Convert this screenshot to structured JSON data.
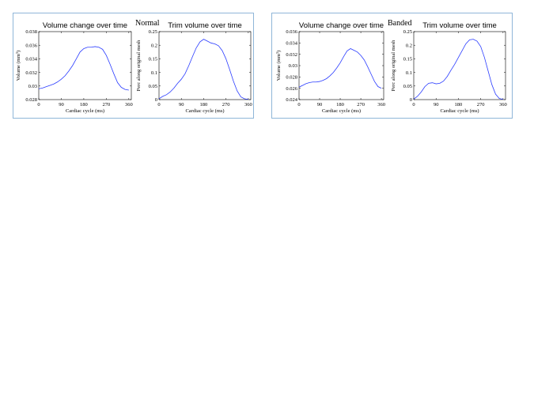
{
  "panels": [
    {
      "id": "normal",
      "label": "Normal"
    },
    {
      "id": "banded",
      "label": "Banded"
    }
  ],
  "style": {
    "line_color": "#2a3cff",
    "panel_border": "#8fb6d8"
  },
  "chart_data": [
    {
      "panel": "Normal",
      "type": "line",
      "title": "Volume change over time",
      "xlabel": "Cardiac cycle (ms)",
      "ylabel": "Volume (mm",
      "ylabel_sup": "3",
      "ylabel_end": ")",
      "xlim": [
        0,
        370
      ],
      "ylim": [
        0.028,
        0.038
      ],
      "xticks": [
        0,
        90,
        180,
        270,
        360
      ],
      "xtick_labels": [
        "0",
        "90",
        "180",
        "270",
        "360"
      ],
      "yticks": [
        0.028,
        0.03,
        0.032,
        0.034,
        0.036,
        0.038
      ],
      "ytick_labels": [
        "0.028",
        "0.03",
        "0.032",
        "0.034",
        "0.036",
        "0.038"
      ],
      "series": [
        {
          "x": [
            0,
            15,
            30,
            45,
            60,
            75,
            90,
            105,
            120,
            135,
            150,
            165,
            180,
            195,
            210,
            225,
            240,
            255,
            270,
            285,
            300,
            315,
            330,
            345,
            360
          ],
          "y": [
            0.0296,
            0.0297,
            0.0299,
            0.0301,
            0.0303,
            0.0306,
            0.031,
            0.0315,
            0.0322,
            0.033,
            0.034,
            0.035,
            0.0355,
            0.0357,
            0.0357,
            0.0358,
            0.0357,
            0.0354,
            0.0345,
            0.0332,
            0.0318,
            0.0305,
            0.0298,
            0.0295,
            0.0294
          ]
        }
      ]
    },
    {
      "panel": "Normal",
      "type": "line",
      "title": "Trim volume over time",
      "xlabel": "Cardiac cycle (ms)",
      "ylabel": "Perc along original mesh",
      "xlim": [
        0,
        370
      ],
      "ylim": [
        0,
        0.25
      ],
      "xticks": [
        0,
        90,
        180,
        270,
        360
      ],
      "xtick_labels": [
        "0",
        "90",
        "180",
        "270",
        "360"
      ],
      "yticks": [
        0,
        0.05,
        0.1,
        0.15,
        0.2,
        0.25
      ],
      "ytick_labels": [
        "0",
        "0.05",
        "0.1",
        "0.15",
        "0.2",
        "0.25"
      ],
      "series": [
        {
          "x": [
            0,
            15,
            30,
            45,
            60,
            75,
            90,
            105,
            120,
            135,
            150,
            165,
            180,
            195,
            210,
            225,
            240,
            255,
            270,
            285,
            300,
            315,
            330,
            345,
            360
          ],
          "y": [
            0.003,
            0.012,
            0.018,
            0.028,
            0.042,
            0.06,
            0.075,
            0.095,
            0.125,
            0.158,
            0.19,
            0.212,
            0.222,
            0.215,
            0.208,
            0.205,
            0.198,
            0.18,
            0.15,
            0.11,
            0.068,
            0.032,
            0.01,
            0.003,
            0.001
          ]
        }
      ]
    },
    {
      "panel": "Banded",
      "type": "line",
      "title": "Volume change over time",
      "xlabel": "Cardiac cycle (ms)",
      "ylabel": "Volume (mm",
      "ylabel_sup": "3",
      "ylabel_end": ")",
      "xlim": [
        0,
        370
      ],
      "ylim": [
        0.024,
        0.036
      ],
      "xticks": [
        0,
        90,
        180,
        270,
        360
      ],
      "xtick_labels": [
        "0",
        "90",
        "180",
        "270",
        "360"
      ],
      "yticks": [
        0.024,
        0.026,
        0.028,
        0.03,
        0.032,
        0.034,
        0.036
      ],
      "ytick_labels": [
        "0.024",
        "0.026",
        "0.028",
        "0.03",
        "0.032",
        "0.034",
        "0.036"
      ],
      "series": [
        {
          "x": [
            0,
            15,
            30,
            45,
            60,
            75,
            90,
            105,
            120,
            135,
            150,
            165,
            180,
            195,
            210,
            225,
            240,
            255,
            270,
            285,
            300,
            315,
            330,
            345,
            360
          ],
          "y": [
            0.0262,
            0.0265,
            0.0268,
            0.027,
            0.0271,
            0.0271,
            0.0272,
            0.0274,
            0.0277,
            0.0282,
            0.0288,
            0.0296,
            0.0305,
            0.0316,
            0.0326,
            0.033,
            0.0327,
            0.0324,
            0.0318,
            0.031,
            0.0298,
            0.0285,
            0.0272,
            0.0263,
            0.026
          ]
        }
      ]
    },
    {
      "panel": "Banded",
      "type": "line",
      "title": "Trim volume over time",
      "xlabel": "Cardiac cycle (ms)",
      "ylabel": "Perc along original mesh",
      "xlim": [
        0,
        370
      ],
      "ylim": [
        0,
        0.25
      ],
      "xticks": [
        0,
        90,
        180,
        270,
        360
      ],
      "xtick_labels": [
        "0",
        "90",
        "180",
        "270",
        "360"
      ],
      "yticks": [
        0,
        0.05,
        0.1,
        0.15,
        0.2,
        0.25
      ],
      "ytick_labels": [
        "0",
        "0.05",
        "0.1",
        "0.15",
        "0.2",
        "0.25"
      ],
      "series": [
        {
          "x": [
            0,
            15,
            30,
            45,
            60,
            75,
            90,
            105,
            120,
            135,
            150,
            165,
            180,
            195,
            210,
            225,
            240,
            255,
            270,
            285,
            300,
            315,
            330,
            345,
            360
          ],
          "y": [
            0.002,
            0.012,
            0.028,
            0.048,
            0.06,
            0.062,
            0.058,
            0.06,
            0.068,
            0.085,
            0.108,
            0.13,
            0.155,
            0.18,
            0.205,
            0.22,
            0.222,
            0.215,
            0.195,
            0.155,
            0.105,
            0.055,
            0.02,
            0.004,
            0.001
          ]
        }
      ]
    }
  ]
}
